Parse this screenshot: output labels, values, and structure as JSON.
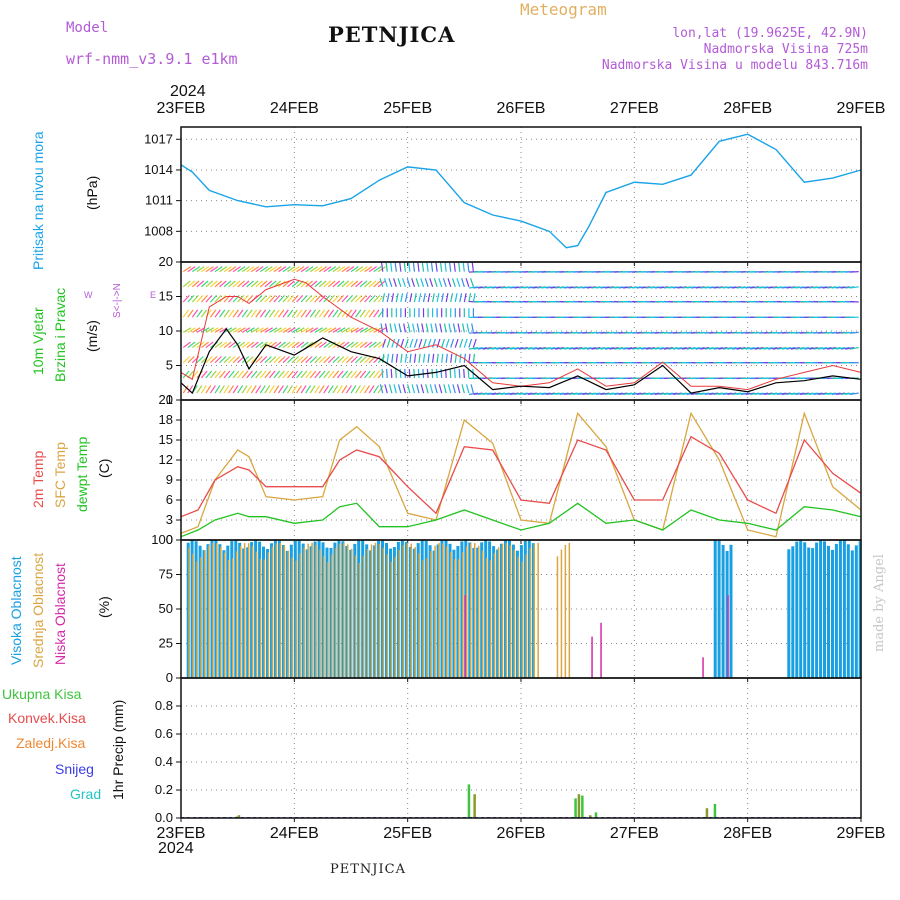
{
  "header": {
    "model_label": "Model",
    "model_name": "wrf-nmm_v3.9.1 e1km",
    "title": "PETNJICA",
    "meteogram": "Meteogram",
    "lonlat": "lon,lat (19.9625E, 42.9N)",
    "alt": "Nadmorska Visina 725m",
    "alt_model": "Nadmorska Visina u modelu 843.716m",
    "footer": "PETNJICA",
    "watermark": "made by Angel",
    "year": "2024"
  },
  "colors": {
    "pressure": "#1aa3e8",
    "wind_speed": "#000000",
    "gust": "#e83a3a",
    "temp2m": "#e84c4c",
    "sfc_temp": "#d9a640",
    "dewpt": "#22c322",
    "high_cloud": "#19a0e3",
    "mid_cloud": "#d9a640",
    "low_cloud": "#d62aa8",
    "total_precip": "#3ec43e",
    "conv_precip": "#e84c4c",
    "frz_precip": "#ee8833",
    "snow": "#3a3ae8",
    "hail": "#22c3c3"
  },
  "chart_data": [
    {
      "type": "line",
      "name": "pressure",
      "ylabel": [
        "Pritisak na nivou mora",
        "(hPa)"
      ],
      "ylim": [
        1005,
        1018.2
      ],
      "yticks": [
        1008,
        1011,
        1014,
        1017
      ],
      "x_dates": [
        "23FEB",
        "24FEB",
        "25FEB",
        "26FEB",
        "27FEB",
        "28FEB",
        "29FEB"
      ],
      "x": [
        0,
        0.1,
        0.25,
        0.5,
        0.75,
        1.0,
        1.25,
        1.5,
        1.75,
        2.0,
        2.25,
        2.5,
        2.75,
        3.0,
        3.25,
        3.4,
        3.5,
        3.6,
        3.75,
        4.0,
        4.25,
        4.5,
        4.75,
        5.0,
        5.25,
        5.5,
        5.75,
        6.0
      ],
      "values": [
        1014.5,
        1013.8,
        1012.0,
        1011.0,
        1010.4,
        1010.6,
        1010.5,
        1011.2,
        1013.0,
        1014.3,
        1014.0,
        1010.8,
        1009.6,
        1009.0,
        1008.0,
        1006.4,
        1006.6,
        1008.5,
        1011.8,
        1012.8,
        1012.6,
        1013.5,
        1016.8,
        1017.5,
        1016.0,
        1012.8,
        1013.2,
        1014.0
      ]
    },
    {
      "type": "line",
      "name": "wind",
      "ylabel": [
        "10m Vjetar",
        "Brzina i Pravac",
        "(m/s)"
      ],
      "compass": [
        "W",
        "<-",
        "|",
        "->",
        "E"
      ],
      "ylim": [
        0,
        20
      ],
      "yticks": [
        0,
        5,
        10,
        15,
        20
      ],
      "x": [
        0,
        0.1,
        0.25,
        0.4,
        0.5,
        0.6,
        0.75,
        1.0,
        1.1,
        1.25,
        1.5,
        1.75,
        2.0,
        2.25,
        2.5,
        2.75,
        3.0,
        3.25,
        3.5,
        3.75,
        4.0,
        4.25,
        4.5,
        4.75,
        5.0,
        5.25,
        5.5,
        5.75,
        6.0
      ],
      "series": [
        {
          "name": "speed",
          "values": [
            2.5,
            1.0,
            7.0,
            10.3,
            8.0,
            4.5,
            8.0,
            6.5,
            7.5,
            9.0,
            7.0,
            6.0,
            3.5,
            4.0,
            5.0,
            1.5,
            2.0,
            1.8,
            3.5,
            1.5,
            2.2,
            5.0,
            1.0,
            1.8,
            1.2,
            2.5,
            2.8,
            3.5,
            3.0
          ]
        },
        {
          "name": "gust",
          "values": [
            4.0,
            3.0,
            13.5,
            15.0,
            15.0,
            14.0,
            16.0,
            17.5,
            17.0,
            15.0,
            12.0,
            10.0,
            7.0,
            8.0,
            6.0,
            2.5,
            2.0,
            2.5,
            4.5,
            2.0,
            2.5,
            5.5,
            2.0,
            2.0,
            1.5,
            3.0,
            4.0,
            5.0,
            4.0
          ]
        }
      ]
    },
    {
      "type": "line",
      "name": "temperature",
      "ylabel": [
        "2m Temp",
        "SFC Temp",
        "dewpt Temp",
        "(C)"
      ],
      "ylim": [
        0,
        21
      ],
      "yticks": [
        0,
        3,
        6,
        9,
        12,
        15,
        18,
        21
      ],
      "x": [
        0,
        0.15,
        0.3,
        0.5,
        0.6,
        0.75,
        1.0,
        1.25,
        1.4,
        1.55,
        1.75,
        2.0,
        2.25,
        2.5,
        2.75,
        3.0,
        3.25,
        3.5,
        3.75,
        4.0,
        4.25,
        4.5,
        4.75,
        5.0,
        5.25,
        5.5,
        5.75,
        6.0
      ],
      "series": [
        {
          "name": "2m",
          "values": [
            3.5,
            4.5,
            9.0,
            11.0,
            10.5,
            8.0,
            8.0,
            8.0,
            12.0,
            13.5,
            12.5,
            8.0,
            4.0,
            14.0,
            13.5,
            6.0,
            5.5,
            15.0,
            13.5,
            6.0,
            6.0,
            15.5,
            13.0,
            6.0,
            4.0,
            15.0,
            10.0,
            7.0
          ]
        },
        {
          "name": "sfc",
          "values": [
            1.0,
            2.0,
            9.0,
            13.5,
            12.5,
            6.5,
            6.0,
            6.5,
            15.0,
            17.0,
            14.0,
            4.0,
            3.0,
            18.0,
            14.5,
            3.0,
            2.5,
            19.0,
            14.0,
            3.0,
            1.5,
            19.0,
            12.0,
            1.5,
            0.5,
            19.0,
            8.0,
            4.5
          ]
        },
        {
          "name": "dewpt",
          "values": [
            0.5,
            1.5,
            3.0,
            4.0,
            3.5,
            3.5,
            2.5,
            3.0,
            5.0,
            5.5,
            2.0,
            2.0,
            3.0,
            4.5,
            3.0,
            1.5,
            2.5,
            5.5,
            2.5,
            3.0,
            1.5,
            4.5,
            3.0,
            2.5,
            1.5,
            5.0,
            4.5,
            3.5
          ]
        }
      ]
    },
    {
      "type": "bar",
      "name": "clouds",
      "ylabel": [
        "Visoka Oblacnost",
        "Srednja Oblacnost",
        "Niska Oblacnost",
        "(%)"
      ],
      "ylim": [
        0,
        100
      ],
      "yticks": [
        0,
        25,
        50,
        75,
        100
      ],
      "series": [
        {
          "name": "high",
          "ranges": [
            [
              0.05,
              3.1
            ],
            [
              4.7,
              4.85
            ],
            [
              5.35,
              6.0
            ]
          ],
          "value": 100
        },
        {
          "name": "mid",
          "ranges": [
            [
              0.05,
              3.15
            ],
            [
              3.3,
              3.45
            ]
          ],
          "value": 98
        },
        {
          "name": "low",
          "points": [
            [
              2.5,
              60
            ],
            [
              3.62,
              30
            ],
            [
              3.7,
              40
            ],
            [
              4.6,
              15
            ],
            [
              4.82,
              60
            ]
          ]
        }
      ]
    },
    {
      "type": "bar",
      "name": "precip",
      "ylabel": [
        "1hr Precip (mm)"
      ],
      "legend": [
        "Ukupna Kisa",
        "Konvek.Kisa",
        "Zaledj.Kisa",
        "Snijeg",
        "Grad"
      ],
      "ylim": [
        0,
        1.0
      ],
      "yticks": [
        0,
        0.2,
        0.4,
        0.6,
        0.8
      ],
      "x": [
        0.48,
        0.5,
        2.53,
        2.58,
        3.47,
        3.5,
        3.53,
        3.6,
        3.65,
        4.63,
        4.7
      ],
      "values": [
        0.01,
        0.02,
        0.24,
        0.17,
        0.14,
        0.17,
        0.16,
        0.02,
        0.04,
        0.07,
        0.1
      ]
    }
  ]
}
